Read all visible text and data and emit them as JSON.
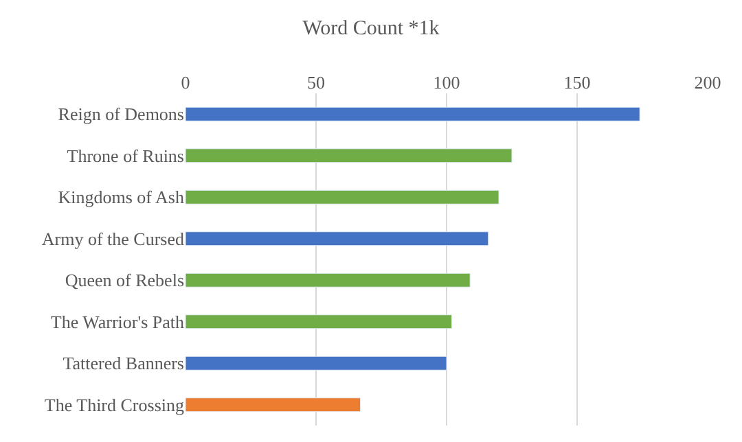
{
  "chart_data": {
    "type": "bar",
    "orientation": "horizontal",
    "title": "Word Count *1k",
    "categories": [
      "Reign of Demons",
      "Throne of Ruins",
      "Kingdoms of Ash",
      "Army of the Cursed",
      "Queen of Rebels",
      "The Warrior's Path",
      "Tattered Banners",
      "The Third Crossing"
    ],
    "values": [
      174,
      125,
      120,
      116,
      109,
      102,
      100,
      67
    ],
    "colors": [
      "#4472c4",
      "#70ad47",
      "#70ad47",
      "#4472c4",
      "#70ad47",
      "#70ad47",
      "#4472c4",
      "#ed7d31"
    ],
    "xlim": [
      0,
      200
    ],
    "xticks": [
      0,
      50,
      100,
      150,
      200
    ],
    "grid": "x"
  }
}
